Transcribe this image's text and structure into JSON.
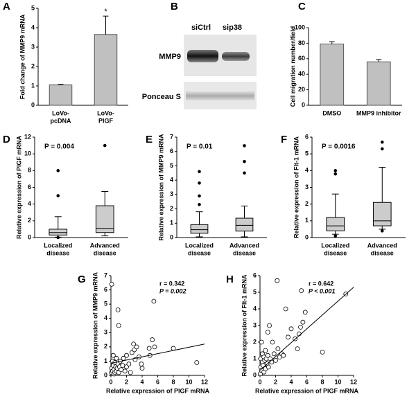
{
  "chart_data": [
    {
      "type": "bar",
      "panel": "A",
      "y_label": "Fold change of MMP9 mRNA",
      "categories": [
        [
          "LoVo-",
          "pcDNA"
        ],
        [
          "LoVo-",
          "PlGF"
        ]
      ],
      "values": [
        1.05,
        3.65
      ],
      "errors": [
        0.03,
        0.95
      ],
      "annotation": "*",
      "color": "#c0c0c0",
      "ylim": [
        0,
        5
      ],
      "yticks": [
        0,
        1,
        2,
        3,
        4,
        5
      ]
    },
    {
      "type": "blot",
      "panel": "B",
      "lanes": [
        "siCtrl",
        "sip38"
      ],
      "rows": [
        "MMP9",
        "Ponceau S"
      ]
    },
    {
      "type": "bar",
      "panel": "C",
      "y_label": "Cell migration number/field",
      "categories": [
        [
          "DMSO"
        ],
        [
          "MMP9 inhibitor"
        ]
      ],
      "values": [
        79,
        56
      ],
      "errors": [
        3,
        3
      ],
      "color": "#c0c0c0",
      "ylim": [
        0,
        100
      ],
      "yticks": [
        0,
        20,
        40,
        60,
        80,
        100
      ]
    },
    {
      "type": "box",
      "panel": "D",
      "y_label": "Relative expression of PlGF mRNA",
      "annotation": "P = 0.004",
      "categories": [
        [
          "Localized",
          "disease"
        ],
        [
          "Advanced",
          "disease"
        ]
      ],
      "boxes": [
        {
          "min": 0.05,
          "q1": 0.3,
          "median": 0.6,
          "q3": 1.0,
          "max": 2.5,
          "outliers": [
            5.0,
            8.0,
            0.0
          ]
        },
        {
          "min": 0.2,
          "q1": 0.6,
          "median": 1.1,
          "q3": 3.8,
          "max": 5.5,
          "outliers": [
            11.0
          ]
        }
      ],
      "ylim": [
        0,
        12
      ],
      "yticks": [
        0,
        2,
        4,
        6,
        8,
        10,
        12
      ]
    },
    {
      "type": "box",
      "panel": "E",
      "y_label": "Relative expression of MMP9 mRNA",
      "annotation": "P = 0.01",
      "categories": [
        [
          "Localized",
          "disease"
        ],
        [
          "Advanced",
          "disease"
        ]
      ],
      "boxes": [
        {
          "min": 0.05,
          "q1": 0.3,
          "median": 0.55,
          "q3": 0.9,
          "max": 1.8,
          "outliers": [
            2.3,
            2.9,
            3.8,
            4.6
          ]
        },
        {
          "min": 0.05,
          "q1": 0.45,
          "median": 0.85,
          "q3": 1.35,
          "max": 2.2,
          "outliers": [
            4.5,
            5.3,
            6.4
          ]
        }
      ],
      "ylim": [
        0,
        7
      ],
      "yticks": [
        0,
        1,
        2,
        3,
        4,
        5,
        6,
        7
      ]
    },
    {
      "type": "box",
      "panel": "F",
      "y_label": "Relative expression of Flt-1 mRNA",
      "annotation": "P = 0.0016",
      "categories": [
        [
          "Localized",
          "disease"
        ],
        [
          "Advanced",
          "disease"
        ]
      ],
      "boxes": [
        {
          "min": 0.2,
          "q1": 0.4,
          "median": 0.7,
          "q3": 1.2,
          "max": 2.6,
          "outliers": [
            3.8,
            4.0,
            0.1
          ]
        },
        {
          "min": 0.5,
          "q1": 0.7,
          "median": 1.0,
          "q3": 2.1,
          "max": 4.2,
          "outliers": [
            5.3,
            5.7,
            0.4
          ]
        }
      ],
      "ylim": [
        0,
        6
      ],
      "yticks": [
        0,
        1,
        2,
        3,
        4,
        5,
        6
      ]
    },
    {
      "type": "scatter",
      "panel": "G",
      "y_label": "Relative expression of MMP9 mRNA",
      "x_label": "Relative expression of PlGF mRNA",
      "annotations": [
        "r = 0.342",
        "P = 0.002"
      ],
      "x": [
        0.1,
        0.05,
        0.1,
        0.2,
        0.2,
        0.3,
        0.3,
        0.4,
        0.4,
        0.5,
        0.5,
        0.6,
        0.7,
        0.7,
        0.8,
        0.9,
        0.9,
        1.0,
        1.0,
        1.1,
        1.2,
        1.3,
        1.5,
        1.6,
        1.8,
        2.0,
        2.0,
        2.3,
        2.5,
        2.7,
        2.9,
        3.0,
        3.1,
        3.3,
        3.6,
        3.9,
        4.0,
        4.9,
        5.0,
        5.3,
        5.5,
        5.6,
        8.0,
        11.0
      ],
      "y": [
        6.4,
        0.2,
        0.5,
        1.0,
        0.3,
        0.7,
        1.4,
        0.1,
        0.4,
        0.9,
        0.2,
        0.6,
        1.2,
        0.3,
        0.5,
        4.6,
        0.8,
        3.5,
        0.2,
        0.6,
        1.0,
        0.4,
        0.7,
        1.2,
        0.3,
        1.4,
        0.6,
        0.8,
        0.2,
        1.6,
        2.2,
        1.8,
        1.1,
        2.0,
        1.3,
        0.8,
        0.5,
        1.9,
        1.4,
        2.5,
        5.2,
        2.0,
        1.9,
        0.9
      ],
      "fit_line": {
        "x": [
          0,
          12
        ],
        "y": [
          0.85,
          2.2
        ]
      },
      "xlim": [
        0,
        12
      ],
      "xticks": [
        0,
        2,
        4,
        6,
        8,
        10,
        12
      ],
      "ylim": [
        0,
        7
      ],
      "yticks": [
        0,
        1,
        2,
        3,
        4,
        5,
        6,
        7
      ]
    },
    {
      "type": "scatter",
      "panel": "H",
      "y_label": "Relative expression of Flt-1 mRNA",
      "x_label": "Relative expression of PlGF mRNA",
      "annotations": [
        "r = 0.642",
        "P < 0.001"
      ],
      "x": [
        0.05,
        0.1,
        0.1,
        0.2,
        0.2,
        0.3,
        0.3,
        0.4,
        0.5,
        0.5,
        0.6,
        0.7,
        0.7,
        0.8,
        0.9,
        1.0,
        1.0,
        1.1,
        1.2,
        1.3,
        1.5,
        1.6,
        1.8,
        2.0,
        2.2,
        2.3,
        2.5,
        2.8,
        3.0,
        3.3,
        3.6,
        4.0,
        4.5,
        4.8,
        5.0,
        5.2,
        5.3,
        5.5,
        5.8,
        8.0,
        11.0
      ],
      "y": [
        0.1,
        0.5,
        1.0,
        0.3,
        2.0,
        0.8,
        1.3,
        0.6,
        1.1,
        0.2,
        0.9,
        1.5,
        0.4,
        1.0,
        0.7,
        2.6,
        1.2,
        0.5,
        3.0,
        1.0,
        0.8,
        2.0,
        1.3,
        0.9,
        5.7,
        1.6,
        1.1,
        1.3,
        1.2,
        4.0,
        2.3,
        2.8,
        2.2,
        1.6,
        2.5,
        2.9,
        5.1,
        3.2,
        3.8,
        1.4,
        4.9
      ],
      "fit_line": {
        "x": [
          0,
          12
        ],
        "y": [
          0.3,
          5.3
        ]
      },
      "xlim": [
        0,
        12
      ],
      "xticks": [
        0,
        2,
        4,
        6,
        8,
        10,
        12
      ],
      "ylim": [
        0,
        6
      ],
      "yticks": [
        0,
        1,
        2,
        3,
        4,
        5,
        6
      ]
    }
  ]
}
